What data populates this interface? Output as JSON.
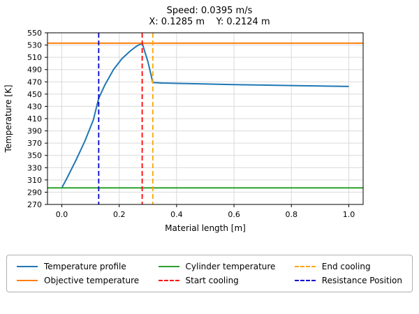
{
  "figure": {
    "title": "Speed: 0.0395 m/s",
    "subtitle": "X: 0.1285 m    Y: 0.2124 m"
  },
  "chart_data": {
    "type": "line",
    "title": "Speed: 0.0395 m/s",
    "subtitle": "X: 0.1285 m    Y: 0.2124 m",
    "xlabel": "Material length [m]",
    "ylabel": "Temperature [K]",
    "xlim": [
      -0.05,
      1.05
    ],
    "ylim": [
      270,
      550
    ],
    "xticks": [
      0.0,
      0.2,
      0.4,
      0.6,
      0.8,
      1.0
    ],
    "yticks": [
      270,
      290,
      310,
      330,
      350,
      370,
      390,
      410,
      430,
      450,
      470,
      490,
      510,
      530,
      550
    ],
    "grid": true,
    "grid_color": "#d9d9d9",
    "spine_color": "#000000",
    "legend_position": "bottom",
    "legend_columns": 3,
    "series": [
      {
        "name": "Temperature profile",
        "kind": "line",
        "color": "#1f77b4",
        "dash": false,
        "x": [
          0,
          0.02,
          0.05,
          0.08,
          0.11,
          0.1285,
          0.15,
          0.18,
          0.21,
          0.24,
          0.26,
          0.28,
          0.3,
          0.317,
          0.35,
          0.45,
          0.6,
          0.8,
          1.0
        ],
        "y": [
          297,
          315,
          343,
          373,
          408,
          443,
          465,
          490,
          508,
          521,
          528,
          533,
          503,
          469,
          468,
          467,
          465.5,
          464,
          462.5
        ]
      },
      {
        "name": "Objective temperature",
        "kind": "hline",
        "color": "#ff7f0e",
        "dash": false,
        "value": 533
      },
      {
        "name": "Cylinder temperature",
        "kind": "hline",
        "color": "#2ca02c",
        "dash": false,
        "value": 297
      },
      {
        "name": "Start cooling",
        "kind": "vline",
        "color": "#ff0000",
        "dash": true,
        "value": 0.28
      },
      {
        "name": "End cooling",
        "kind": "vline",
        "color": "#ffa500",
        "dash": true,
        "value": 0.317
      },
      {
        "name": "Resistance Position",
        "kind": "vline",
        "color": "#0000cd",
        "dash": true,
        "value": 0.1285
      }
    ]
  }
}
